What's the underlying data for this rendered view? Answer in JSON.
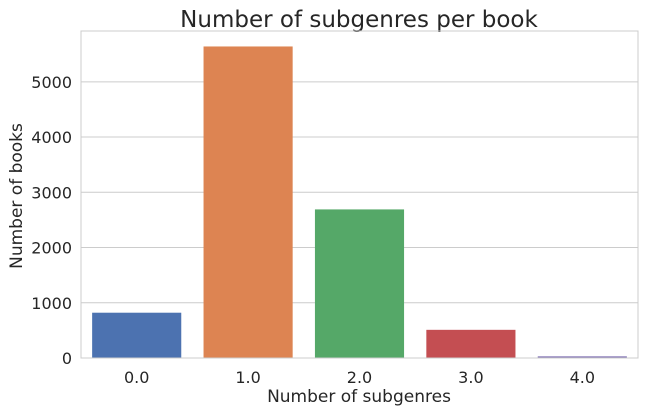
{
  "chart_data": {
    "type": "bar",
    "title": "Number of subgenres per book",
    "xlabel": "Number of subgenres",
    "ylabel": "Number of books",
    "categories": [
      "0.0",
      "1.0",
      "2.0",
      "3.0",
      "4.0"
    ],
    "values": [
      820,
      5640,
      2690,
      510,
      30
    ],
    "ylim": [
      0,
      5920
    ],
    "yticks": [
      "0",
      "1000",
      "2000",
      "3000",
      "4000",
      "5000"
    ],
    "grid": "horizontal",
    "legend": "none",
    "colors": [
      "#4c72b0",
      "#dd8452",
      "#55a868",
      "#c44e52",
      "#8172b3"
    ],
    "grid_color": "#cccccc",
    "frame_color": "#cccccc"
  }
}
